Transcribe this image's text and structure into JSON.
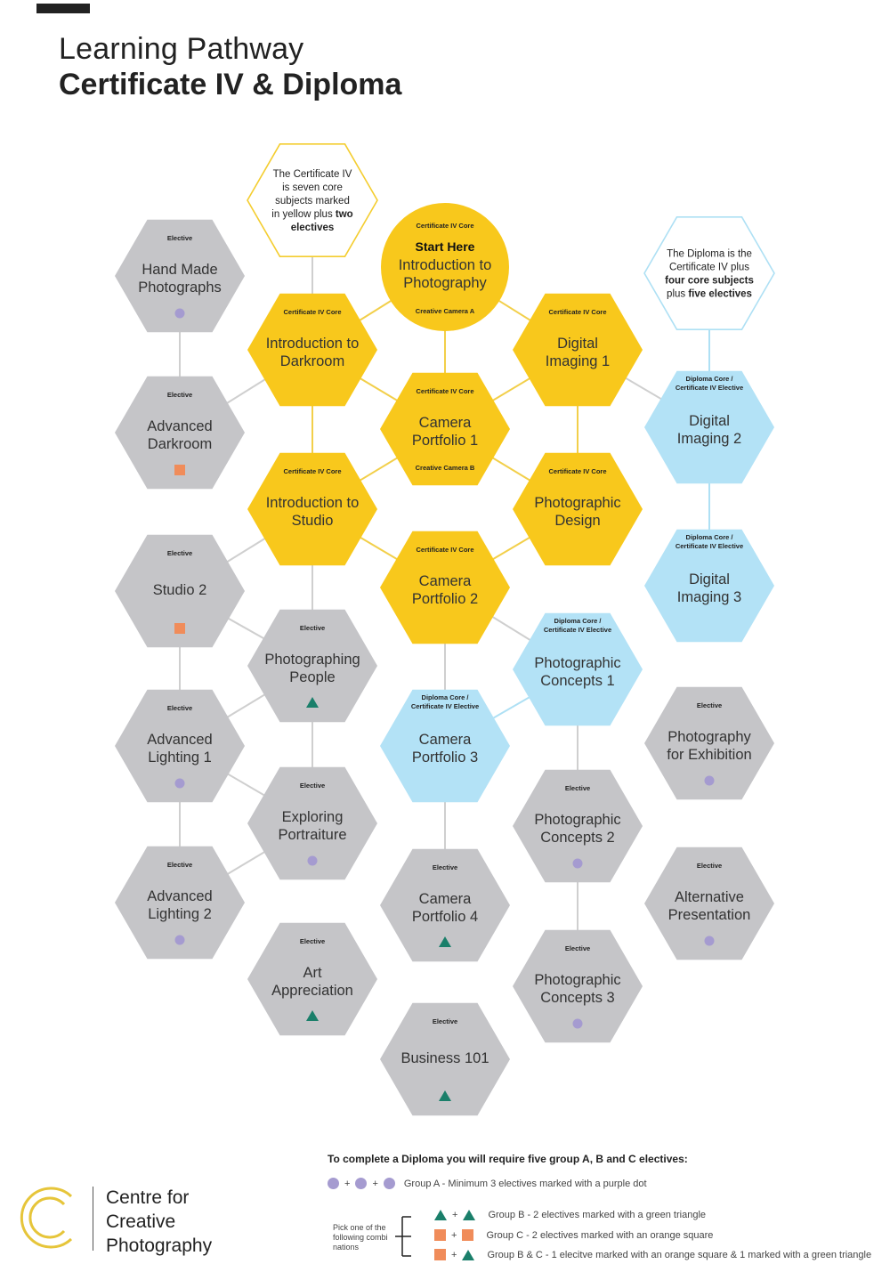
{
  "title": {
    "line1": "Learning Pathway",
    "line2": "Certificate IV & Diploma"
  },
  "colors": {
    "core": "#f8c81c",
    "diploma": "#b3e2f6",
    "elective": "#c5c5c8",
    "connector": "#cfcfcf",
    "purple": "#a59bd0",
    "green": "#1a7f6a",
    "orange": "#f08c5a"
  },
  "nodes": [
    {
      "id": "hand-made-photographs",
      "tag": "Elective",
      "lines": [
        "Hand Made",
        "Photographs"
      ],
      "type": "elective",
      "marker": "dot"
    },
    {
      "id": "advanced-darkroom",
      "tag": "Elective",
      "lines": [
        "Advanced",
        "Darkroom"
      ],
      "type": "elective",
      "marker": "square"
    },
    {
      "id": "studio-2",
      "tag": "Elective",
      "lines": [
        "Studio 2"
      ],
      "type": "elective",
      "marker": "square"
    },
    {
      "id": "advanced-lighting-1",
      "tag": "Elective",
      "lines": [
        "Advanced",
        "Lighting 1"
      ],
      "type": "elective",
      "marker": "dot"
    },
    {
      "id": "advanced-lighting-2",
      "tag": "Elective",
      "lines": [
        "Advanced",
        "Lighting 2"
      ],
      "type": "elective",
      "marker": "dot"
    },
    {
      "id": "intro-darkroom",
      "tag": "Certificate IV Core",
      "lines": [
        "Introduction to",
        "Darkroom"
      ],
      "type": "core",
      "marker": ""
    },
    {
      "id": "intro-studio",
      "tag": "Certificate IV Core",
      "lines": [
        "Introduction to",
        "Studio"
      ],
      "type": "core",
      "marker": ""
    },
    {
      "id": "photographing-people",
      "tag": "Elective",
      "lines": [
        "Photographing",
        "People"
      ],
      "type": "elective",
      "marker": "triangle"
    },
    {
      "id": "exploring-portraiture",
      "tag": "Elective",
      "lines": [
        "Exploring",
        "Portraiture"
      ],
      "type": "elective",
      "marker": "dot"
    },
    {
      "id": "art-appreciation",
      "tag": "Elective",
      "lines": [
        "Art",
        "Appreciation"
      ],
      "type": "elective",
      "marker": "triangle"
    },
    {
      "id": "camera-portfolio-1",
      "tag": "Certificate IV Core",
      "sub": "Creative Camera B",
      "lines": [
        "Camera",
        "Portfolio 1"
      ],
      "type": "core",
      "marker": ""
    },
    {
      "id": "camera-portfolio-2",
      "tag": "Certificate IV Core",
      "lines": [
        "Camera",
        "Portfolio 2"
      ],
      "type": "core",
      "marker": ""
    },
    {
      "id": "camera-portfolio-3",
      "tag": "Diploma Core /\nCertificate IV Elective",
      "lines": [
        "Camera",
        "Portfolio 3"
      ],
      "type": "diploma",
      "marker": ""
    },
    {
      "id": "camera-portfolio-4",
      "tag": "Elective",
      "lines": [
        "Camera",
        "Portfolio 4"
      ],
      "type": "elective",
      "marker": "triangle"
    },
    {
      "id": "business-101",
      "tag": "Elective",
      "lines": [
        "Business 101"
      ],
      "type": "elective",
      "marker": "triangle"
    },
    {
      "id": "digital-imaging-1",
      "tag": "Certificate IV Core",
      "lines": [
        "Digital",
        "Imaging 1"
      ],
      "type": "core",
      "marker": ""
    },
    {
      "id": "photographic-design",
      "tag": "Certificate IV Core",
      "lines": [
        "Photographic",
        "Design"
      ],
      "type": "core",
      "marker": ""
    },
    {
      "id": "photographic-concepts-1",
      "tag": "Diploma Core /\nCertificate IV Elective",
      "lines": [
        "Photographic",
        "Concepts 1"
      ],
      "type": "diploma",
      "marker": ""
    },
    {
      "id": "photographic-concepts-2",
      "tag": "Elective",
      "lines": [
        "Photographic",
        "Concepts 2"
      ],
      "type": "elective",
      "marker": "dot"
    },
    {
      "id": "photographic-concepts-3",
      "tag": "Elective",
      "lines": [
        "Photographic",
        "Concepts 3"
      ],
      "type": "elective",
      "marker": "dot"
    },
    {
      "id": "digital-imaging-2",
      "tag": "Diploma Core /\nCertificate IV Elective",
      "lines": [
        "Digital",
        "Imaging 2"
      ],
      "type": "diploma",
      "marker": ""
    },
    {
      "id": "digital-imaging-3",
      "tag": "Diploma Core /\nCertificate IV Elective",
      "lines": [
        "Digital",
        "Imaging 3"
      ],
      "type": "diploma",
      "marker": ""
    },
    {
      "id": "photography-for-exhibition",
      "tag": "Elective",
      "lines": [
        "Photography",
        "for Exhibition"
      ],
      "type": "elective",
      "marker": "dot"
    },
    {
      "id": "alternative-presentation",
      "tag": "Elective",
      "lines": [
        "Alternative",
        "Presentation"
      ],
      "type": "elective",
      "marker": "dot"
    }
  ],
  "start_node": {
    "tag": "Certificate IV Core",
    "heading": "Start Here",
    "lines": [
      "Introduction to",
      "Photography"
    ],
    "sub": "Creative Camera A"
  },
  "notes": {
    "cert": [
      [
        {
          "t": "The Certificate IV",
          "b": false
        }
      ],
      [
        {
          "t": "is seven core",
          "b": false
        }
      ],
      [
        {
          "t": "subjects marked",
          "b": false
        }
      ],
      [
        {
          "t": "in yellow plus ",
          "b": false
        },
        {
          "t": "two",
          "b": true
        }
      ],
      [
        {
          "t": "electives",
          "b": true
        }
      ]
    ],
    "diploma": [
      [
        {
          "t": "The Diploma is the",
          "b": false
        }
      ],
      [
        {
          "t": "Certificate IV plus",
          "b": false
        }
      ],
      [
        {
          "t": "four core subjects",
          "b": true
        }
      ],
      [
        {
          "t": "plus ",
          "b": false
        },
        {
          "t": "five electives",
          "b": true
        }
      ]
    ]
  },
  "legend": {
    "title": "To complete a Diploma you will require five group A, B and C electives:",
    "group_a": "Group A - Minimum 3 electives marked with a purple dot",
    "pick": "Pick one of the following combi nations",
    "group_b": "Group B - 2 electives marked with a green triangle",
    "group_c": "Group C - 2 electives marked with an orange square",
    "group_bc": "Group B & C - 1 elecitve marked with an orange square & 1 marked with a green triangle",
    "plus": "+"
  },
  "logo": {
    "line1": "Centre for",
    "line2": "Creative",
    "line3": "Photography"
  }
}
